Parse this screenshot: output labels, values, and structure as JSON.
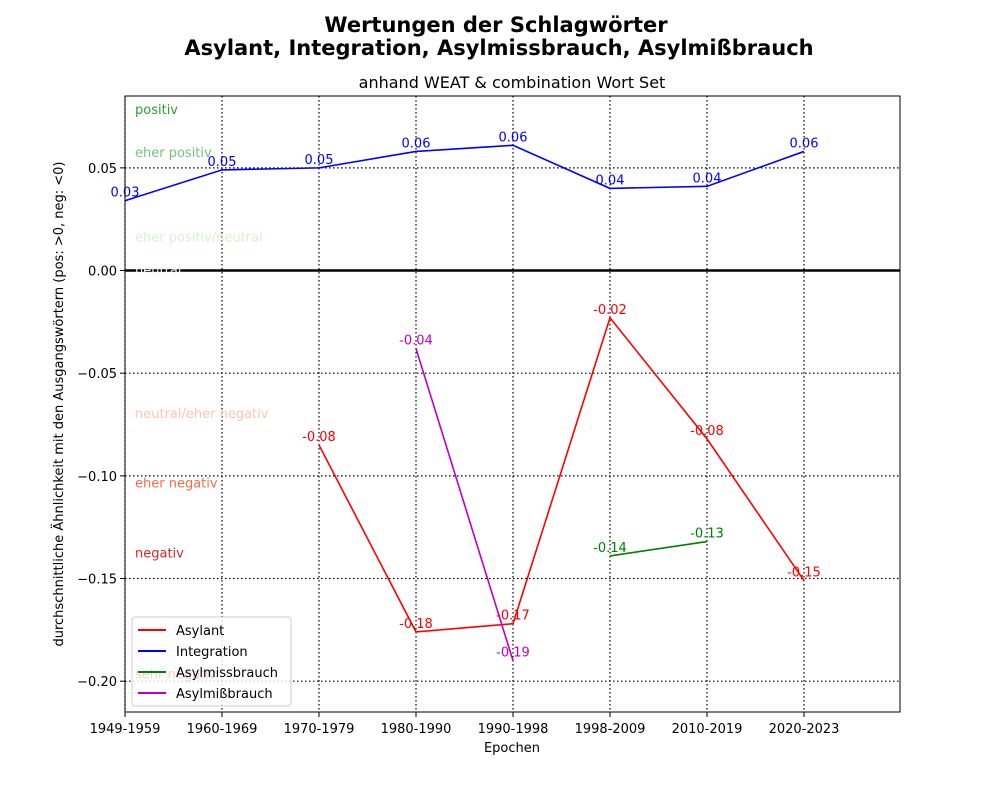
{
  "chart_data": {
    "type": "line",
    "title": "Wertungen der Schlagwörter\nAsylant, Integration, Asylmissbrauch, Asylmißbrauch",
    "subtitle": "anhand WEAT & combination Wort Set",
    "xlabel": "Epochen",
    "ylabel": "durchschnittliche Ähnlichkeit mit den Ausgangswörtern (pos: >0, neg: <0)",
    "categories": [
      "1949-1959",
      "1960-1969",
      "1970-1979",
      "1980-1990",
      "1990-1998",
      "1998-2009",
      "2010-2019",
      "2020-2023"
    ],
    "ylim": [
      -0.215,
      0.085
    ],
    "yticks": [
      -0.2,
      -0.15,
      -0.1,
      -0.05,
      0.0,
      0.05
    ],
    "ytick_labels": [
      "−0.20",
      "−0.15",
      "−0.10",
      "−0.05",
      "0.00",
      "0.05"
    ],
    "grid": true,
    "legend_position": "lower-left",
    "bands": [
      {
        "label": "positiv",
        "from": 0.085,
        "to": 0.1,
        "fill": "#ffffff",
        "text_color": "#2ca02c"
      },
      {
        "label": "eher positiv",
        "from": 0.064,
        "to": 0.085,
        "fill": "#d5ecd5",
        "text_color": "#74c476"
      },
      {
        "label": "eher positiv/neutral",
        "from": 0.023,
        "to": 0.064,
        "fill": "#eef7ed",
        "text_color": "#d9f0d3"
      },
      {
        "label": "neutral",
        "from": -0.023,
        "to": 0.023,
        "fill": "#ffffff",
        "text_color": "#f4f4f4"
      },
      {
        "label": "neutral/eher negativ",
        "from": -0.063,
        "to": -0.023,
        "fill": "#fde9e1",
        "text_color": "#fcc5b0"
      },
      {
        "label": "eher negativ",
        "from": -0.097,
        "to": -0.063,
        "fill": "#fcd3c8",
        "text_color": "#fb6a4a"
      },
      {
        "label": "negativ",
        "from": -0.131,
        "to": -0.097,
        "fill": "#f4b6b4",
        "text_color": "#d62728"
      },
      {
        "label": "sehr negativ",
        "from": -0.19,
        "to": -0.131,
        "fill": "#dbaaad",
        "text_color": "#a50f15"
      }
    ],
    "series": [
      {
        "name": "Asylant",
        "color": "#ff0000",
        "x": [
          "1970-1979",
          "1980-1990",
          "1990-1998",
          "1998-2009",
          "2010-2019",
          "2020-2023"
        ],
        "values": [
          -0.085,
          -0.176,
          -0.172,
          -0.023,
          -0.082,
          -0.151
        ],
        "labels": [
          "-0.08",
          "-0.18",
          "-0.17",
          "-0.02",
          "-0.08",
          "-0.15"
        ]
      },
      {
        "name": "Integration",
        "color": "#0000ff",
        "x": [
          "1949-1959",
          "1960-1969",
          "1970-1979",
          "1980-1990",
          "1990-1998",
          "1998-2009",
          "2010-2019",
          "2020-2023"
        ],
        "values": [
          0.034,
          0.049,
          0.05,
          0.058,
          0.061,
          0.04,
          0.041,
          0.058
        ],
        "labels": [
          "0.03",
          "0.05",
          "0.05",
          "0.06",
          "0.06",
          "0.04",
          "0.04",
          "0.06"
        ]
      },
      {
        "name": "Asylmissbrauch",
        "color": "#008000",
        "x": [
          "1998-2009",
          "2010-2019"
        ],
        "values": [
          -0.139,
          -0.132
        ],
        "labels": [
          "-0.14",
          "-0.13"
        ]
      },
      {
        "name": "Asylmißbrauch",
        "color": "#bf00bf",
        "x": [
          "1980-1990",
          "1990-1998"
        ],
        "values": [
          -0.038,
          -0.19
        ],
        "labels": [
          "-0.04",
          "-0.19"
        ]
      }
    ]
  }
}
